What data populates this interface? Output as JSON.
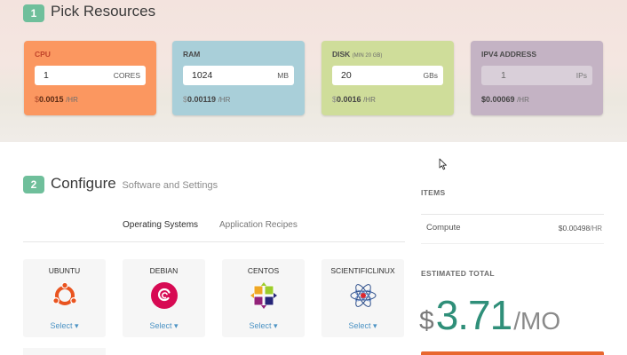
{
  "pick": {
    "step": "1",
    "title": "Pick Resources",
    "cards": {
      "cpu": {
        "label": "CPU",
        "value": "1",
        "unit": "CORES",
        "price_prefix": "$",
        "price": "0.0015",
        "per": "/HR"
      },
      "ram": {
        "label": "RAM",
        "value": "1024",
        "unit": "MB",
        "price_prefix": "$",
        "price": "0.00119",
        "per": "/HR"
      },
      "disk": {
        "label": "DISK",
        "note": "(MIN 20 GB)",
        "value": "20",
        "unit": "GBs",
        "price_prefix": "$",
        "price": "0.0016",
        "per": "/HR"
      },
      "ipv4": {
        "label": "IPV4 ADDRESS",
        "value": "1",
        "unit": "IPs",
        "price_prefix": "$",
        "price": "0.00069",
        "per": "/HR"
      }
    }
  },
  "configure": {
    "step": "2",
    "title": "Configure",
    "subtitle": "Software and Settings",
    "tabs": [
      "Operating Systems",
      "Application Recipes"
    ],
    "active_tab": "Operating Systems",
    "os": [
      {
        "name": "UBUNTU",
        "select": "Select ▾",
        "icon": "ubuntu-icon"
      },
      {
        "name": "DEBIAN",
        "select": "Select ▾",
        "icon": "debian-icon"
      },
      {
        "name": "CENTOS",
        "select": "Select ▾",
        "icon": "centos-icon"
      },
      {
        "name": "SCIENTIFICLINUX",
        "select": "Select ▾",
        "icon": "scientificlinux-icon"
      }
    ]
  },
  "sidebar": {
    "items_heading": "ITEMS",
    "items": [
      {
        "name": "Compute",
        "price_prefix": "$",
        "price": "0.00498",
        "per": "/HR"
      }
    ],
    "total_heading": "ESTIMATED TOTAL",
    "total_currency": "$",
    "total_value": "3.71",
    "total_per": "/MO"
  },
  "colors": {
    "accent_green": "#6fbf9b",
    "cpu_card": "#fb9760",
    "ram_card": "#a9cfd9",
    "disk_card": "#cfdd9a",
    "ipv4_card": "#c4b3c4",
    "total_green": "#2f8f79",
    "order_orange": "#e8672e",
    "link_blue": "#4c93c4"
  }
}
